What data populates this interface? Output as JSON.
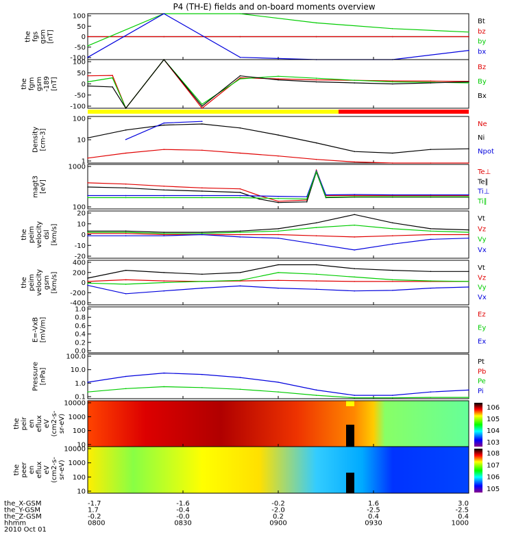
{
  "title": "P4 (TH-E) fields and on-board moments overview",
  "footer": {
    "row_labels": [
      "the_X-GSM",
      "the_Y-GSM",
      "the_Z-GSM",
      "hhmm",
      "2010 Oct 01"
    ],
    "columns": [
      {
        "x": "-1.7",
        "y": "1.7",
        "z": "-0.2",
        "t": "0800"
      },
      {
        "x": "-1.6",
        "y": "-0.4",
        "z": "-0.0",
        "t": "0830"
      },
      {
        "x": "-0.2",
        "y": "-2.0",
        "z": "0.2",
        "t": "0900"
      },
      {
        "x": "1.6",
        "y": "-2.5",
        "z": "0.4",
        "t": "0930"
      },
      {
        "x": "3.0",
        "y": "-2.5",
        "z": "0.4",
        "t": "1000"
      }
    ]
  },
  "colors": {
    "black": "#000000",
    "red": "#e00000",
    "green": "#00cc00",
    "blue": "#0000dd"
  },
  "chart_data": [
    {
      "type": "line",
      "id": "fgs",
      "ylabel_lines": [
        "the",
        "fgs",
        "gsm",
        "[nT]"
      ],
      "ylim": [
        -100,
        100
      ],
      "yticks": [
        "100",
        "50",
        "0",
        "-50",
        "-100"
      ],
      "legend": [
        "Bt",
        "bz",
        "by",
        "bx"
      ],
      "x": [
        8.0,
        8.4,
        8.8,
        9.2,
        9.6,
        10.0
      ],
      "series": [
        {
          "name": "Bt",
          "color": "#000000",
          "values": [
            0,
            0,
            0,
            0,
            0,
            0
          ]
        },
        {
          "name": "bz",
          "color": "#e00000",
          "values": [
            0,
            0,
            0,
            0,
            0,
            0
          ]
        },
        {
          "name": "by",
          "color": "#00cc00",
          "values": [
            -40,
            100,
            100,
            60,
            35,
            20
          ]
        },
        {
          "name": "bx",
          "color": "#0000dd",
          "values": [
            -90,
            100,
            -90,
            -100,
            -100,
            -60
          ]
        }
      ]
    },
    {
      "type": "line",
      "id": "fgm",
      "ylabel_lines": [
        "the",
        "fgm",
        "gsm",
        "-189",
        "[nT]"
      ],
      "ylim": [
        -120,
        120
      ],
      "yticks": [
        "100",
        "50",
        "0",
        "-50",
        "-100"
      ],
      "legend": [
        "Bz",
        "By",
        "Bx"
      ],
      "x": [
        8.0,
        8.13,
        8.2,
        8.4,
        8.6,
        8.8,
        9.0,
        9.2,
        9.4,
        9.6,
        9.8,
        10.0
      ],
      "series": [
        {
          "name": "Bz",
          "color": "#e00000",
          "values": [
            40,
            42,
            -120,
            120,
            -120,
            30,
            25,
            20,
            18,
            15,
            14,
            12
          ]
        },
        {
          "name": "By",
          "color": "#00cc00",
          "values": [
            10,
            30,
            -120,
            120,
            -100,
            25,
            38,
            28,
            18,
            10,
            8,
            5
          ]
        },
        {
          "name": "Bx",
          "color": "#000000",
          "values": [
            -10,
            -15,
            -120,
            120,
            -110,
            40,
            20,
            10,
            5,
            0,
            5,
            10
          ]
        }
      ]
    },
    {
      "type": "line",
      "id": "density",
      "scale": "log",
      "ylabel_lines": [
        "Density",
        "[cm-3]"
      ],
      "ylim": [
        0.3,
        200
      ],
      "yticks": [
        "100",
        "10",
        "1"
      ],
      "legend": [
        "Ne",
        "Ni",
        "Npot"
      ],
      "x": [
        8.0,
        8.2,
        8.4,
        8.6,
        8.8,
        9.0,
        9.2,
        9.4,
        9.6,
        9.8,
        10.0
      ],
      "series": [
        {
          "name": "Ne",
          "color": "#e00000",
          "values": [
            0.6,
            1.2,
            2.0,
            1.8,
            1.2,
            0.8,
            0.5,
            0.35,
            0.3,
            0.3,
            0.3
          ]
        },
        {
          "name": "Ni",
          "color": "#000000",
          "values": [
            10,
            30,
            60,
            70,
            40,
            15,
            5,
            1.5,
            1.2,
            2,
            2.2
          ]
        },
        {
          "name": "Npot",
          "color": "#0000dd",
          "values": [
            null,
            8,
            80,
            100,
            null,
            null,
            null,
            null,
            null,
            null,
            null
          ]
        }
      ]
    },
    {
      "type": "line",
      "id": "magt3",
      "scale": "log",
      "ylabel_lines": [
        "magt3",
        "[eV]"
      ],
      "ylim": [
        90,
        5000
      ],
      "yticks": [
        "1000",
        "100"
      ],
      "legend": [
        "Te⊥",
        "Te∥",
        "Ti⊥",
        "Ti∥"
      ],
      "x": [
        8.0,
        8.2,
        8.4,
        8.6,
        8.8,
        8.9,
        9.0,
        9.15,
        9.2,
        9.25,
        9.4,
        9.6,
        9.8,
        10.0
      ],
      "series": [
        {
          "name": "Te⊥",
          "color": "#e00000",
          "values": [
            950,
            850,
            700,
            600,
            550,
            300,
            180,
            200,
            3000,
            300,
            300,
            300,
            300,
            300
          ]
        },
        {
          "name": "Te∥",
          "color": "#000000",
          "values": [
            650,
            600,
            500,
            450,
            400,
            220,
            160,
            170,
            2500,
            250,
            260,
            260,
            260,
            260
          ]
        },
        {
          "name": "Ti⊥",
          "color": "#0000dd",
          "values": [
            300,
            300,
            300,
            300,
            300,
            290,
            280,
            270,
            2800,
            320,
            330,
            320,
            320,
            320
          ]
        },
        {
          "name": "Ti∥",
          "color": "#00cc00",
          "values": [
            250,
            250,
            250,
            250,
            250,
            240,
            230,
            220,
            2600,
            260,
            270,
            270,
            270,
            270
          ]
        }
      ]
    },
    {
      "type": "line",
      "id": "peim_dsl",
      "ylabel_lines": [
        "the",
        "peim",
        "velocity",
        "dsl",
        "[km/s]"
      ],
      "ylim": [
        -20,
        20
      ],
      "yticks": [
        "20",
        "10",
        "0",
        "-10",
        "-20"
      ],
      "legend": [
        "Vt",
        "Vz",
        "Vy",
        "Vx"
      ],
      "x": [
        8.0,
        8.2,
        8.4,
        8.6,
        8.8,
        9.0,
        9.2,
        9.4,
        9.6,
        9.8,
        10.0
      ],
      "series": [
        {
          "name": "Vt",
          "color": "#000000",
          "values": [
            3,
            3,
            2,
            2,
            3,
            5,
            10,
            17,
            10,
            5,
            4
          ]
        },
        {
          "name": "Vz",
          "color": "#e00000",
          "values": [
            1,
            1,
            0,
            0,
            0,
            0,
            -1,
            -2,
            -1,
            0,
            0
          ]
        },
        {
          "name": "Vy",
          "color": "#00cc00",
          "values": [
            2,
            2,
            1,
            1,
            2,
            3,
            6,
            8,
            5,
            3,
            2
          ]
        },
        {
          "name": "Vx",
          "color": "#0000dd",
          "values": [
            -1,
            -1,
            -1,
            0,
            -2,
            -3,
            -8,
            -13,
            -8,
            -4,
            -3
          ]
        }
      ]
    },
    {
      "type": "line",
      "id": "peim_gsm",
      "ylabel_lines": [
        "the",
        "peim",
        "velocity",
        "gsm",
        "[km/s]"
      ],
      "ylim": [
        -400,
        400
      ],
      "yticks": [
        "400",
        "200",
        "0",
        "-200",
        "-400"
      ],
      "legend": [
        "Vt",
        "Vz",
        "Vy",
        "Vx"
      ],
      "x": [
        8.0,
        8.2,
        8.4,
        8.6,
        8.8,
        9.0,
        9.2,
        9.4,
        9.6,
        9.8,
        10.0
      ],
      "series": [
        {
          "name": "Vt",
          "color": "#000000",
          "values": [
            80,
            220,
            180,
            150,
            180,
            320,
            320,
            250,
            220,
            200,
            200
          ]
        },
        {
          "name": "Vz",
          "color": "#e00000",
          "values": [
            20,
            50,
            30,
            20,
            30,
            40,
            30,
            20,
            20,
            20,
            20
          ]
        },
        {
          "name": "Vy",
          "color": "#00cc00",
          "values": [
            -10,
            -30,
            0,
            20,
            40,
            180,
            150,
            100,
            50,
            30,
            20
          ]
        },
        {
          "name": "Vx",
          "color": "#0000dd",
          "values": [
            -50,
            -200,
            -150,
            -100,
            -60,
            -100,
            -120,
            -150,
            -140,
            -100,
            -80
          ]
        }
      ]
    },
    {
      "type": "line",
      "id": "efield",
      "ylabel_lines": [
        "E=-VxB",
        "[mV/m]"
      ],
      "ylim": [
        0,
        1
      ],
      "yticks": [
        "1.0",
        "0.8",
        "0.6",
        "0.4",
        "0.2",
        "0.0"
      ],
      "legend": [
        "Ez",
        "Ey",
        "Ex"
      ],
      "x": [],
      "series": []
    },
    {
      "type": "line",
      "id": "pressure",
      "scale": "log",
      "ylabel_lines": [
        "Pressure",
        "[nPa]"
      ],
      "ylim": [
        0.01,
        100
      ],
      "yticks": [
        "100.0",
        "10.0",
        "1.0",
        "0.1"
      ],
      "legend": [
        "Pt",
        "Pb",
        "Pe",
        "Pi"
      ],
      "x": [
        8.0,
        8.2,
        8.4,
        8.6,
        8.8,
        9.0,
        9.2,
        9.4,
        9.6,
        9.8,
        10.0
      ],
      "series": [
        {
          "name": "Pi",
          "color": "#0000dd",
          "values": [
            0.3,
            1.0,
            2.0,
            1.5,
            0.8,
            0.3,
            0.06,
            0.02,
            0.02,
            0.04,
            0.06
          ]
        },
        {
          "name": "Pe",
          "color": "#00cc00",
          "values": [
            0.04,
            0.08,
            0.12,
            0.1,
            0.07,
            0.04,
            0.02,
            0.012,
            0.012,
            0.013,
            0.013
          ]
        }
      ]
    },
    {
      "type": "heatmap",
      "id": "peir",
      "ylabel_lines": [
        "the",
        "peir",
        "en",
        "eflux",
        "eV",
        "(cm2-s-",
        "sr-eV)"
      ],
      "yticks": [
        "10000",
        "1000",
        "100",
        "10"
      ],
      "colorbar": {
        "ticks": [
          "10^6",
          "10^5",
          "10^4",
          "10^3"
        ]
      }
    },
    {
      "type": "heatmap",
      "id": "peer",
      "ylabel_lines": [
        "the",
        "peer",
        "en",
        "eflux",
        "eV",
        "(cm2-s-",
        "sr-eV)"
      ],
      "yticks": [
        "10000",
        "1000",
        "100",
        "10"
      ],
      "colorbar": {
        "ticks": [
          "10^8",
          "10^7",
          "10^6",
          "10^5"
        ]
      }
    }
  ]
}
